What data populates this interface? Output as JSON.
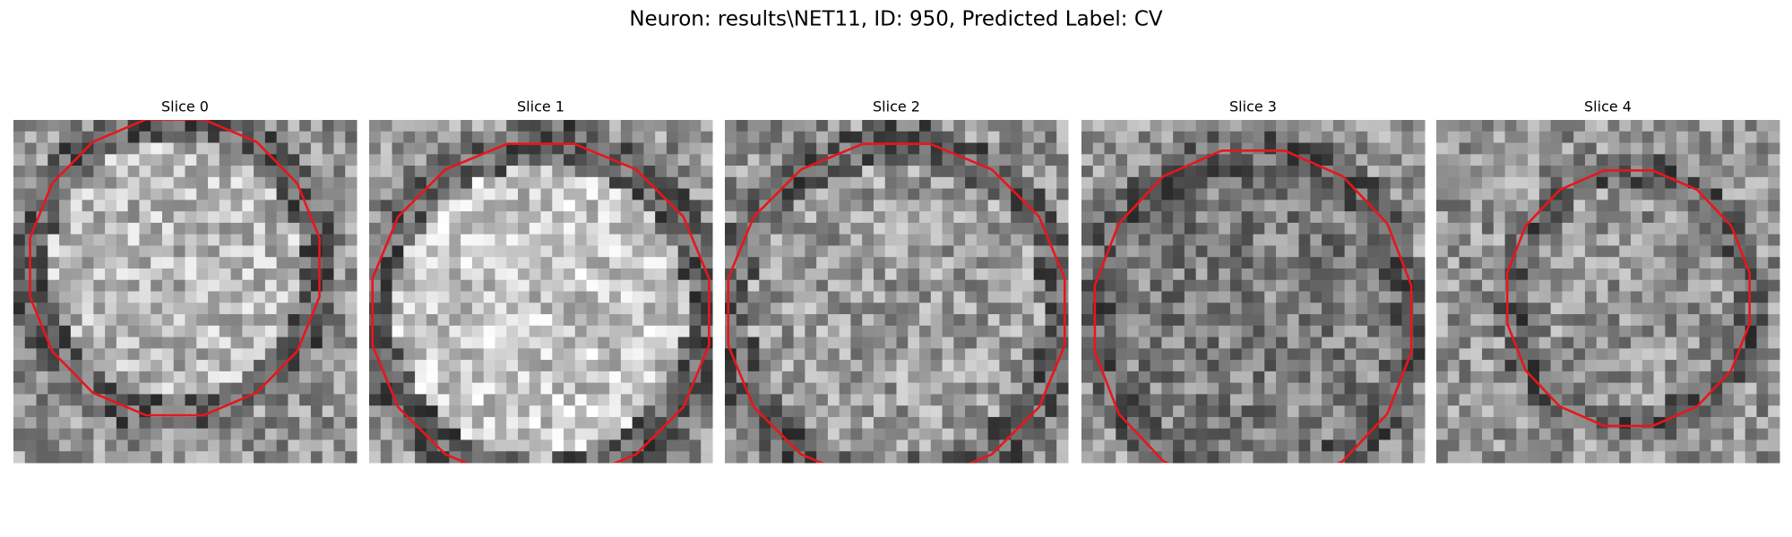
{
  "title": "Neuron: results\\NET11, ID: 950, Predicted Label: CV",
  "panels": [
    {
      "title": "Slice 0"
    },
    {
      "title": "Slice 1"
    },
    {
      "title": "Slice 2"
    },
    {
      "title": "Slice 3"
    },
    {
      "title": "Slice 4"
    }
  ]
}
